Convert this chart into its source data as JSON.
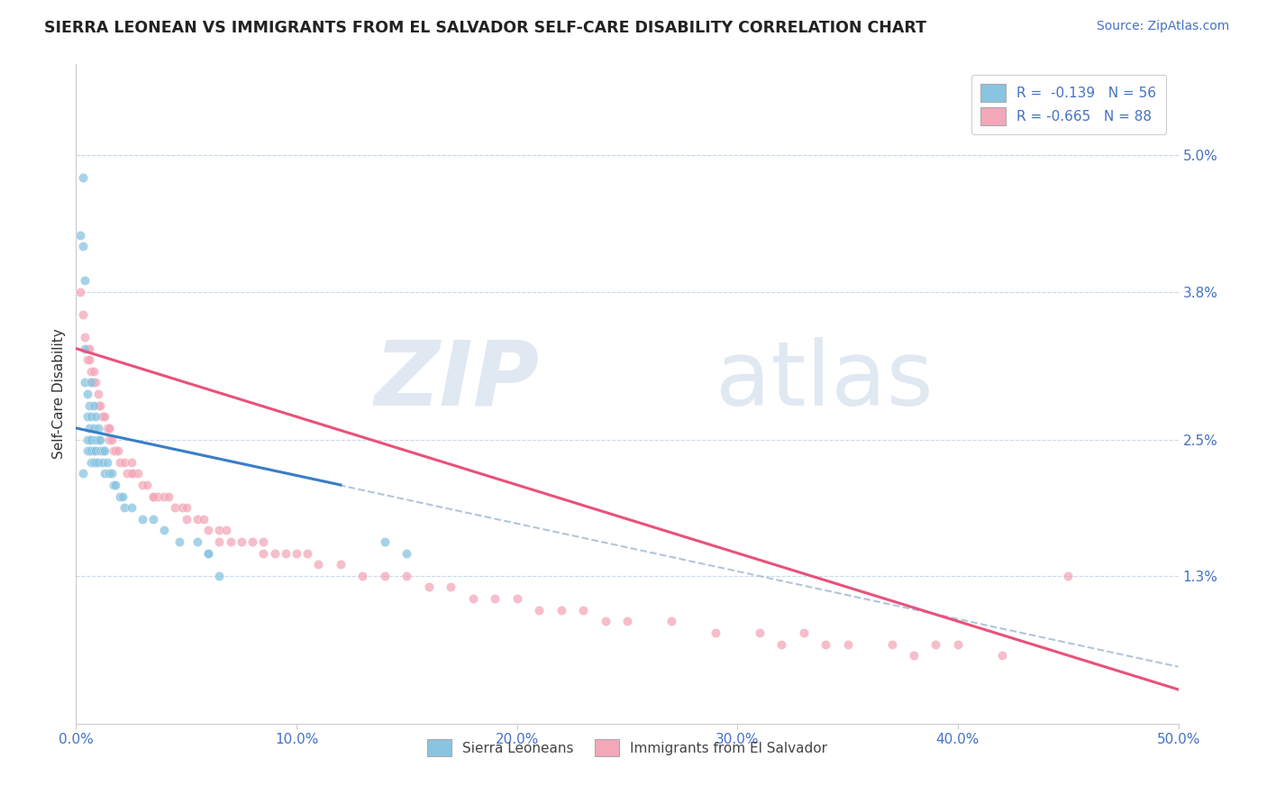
{
  "title": "SIERRA LEONEAN VS IMMIGRANTS FROM EL SALVADOR SELF-CARE DISABILITY CORRELATION CHART",
  "source": "Source: ZipAtlas.com",
  "ylabel_left": "Self-Care Disability",
  "x_min": 0.0,
  "x_max": 0.5,
  "y_min": 0.0,
  "y_max": 0.058,
  "right_yticks": [
    0.013,
    0.025,
    0.038,
    0.05
  ],
  "right_yticklabels": [
    "1.3%",
    "2.5%",
    "3.8%",
    "5.0%"
  ],
  "bottom_xticks": [
    0.0,
    0.1,
    0.2,
    0.3,
    0.4,
    0.5
  ],
  "bottom_xticklabels": [
    "0.0%",
    "10.0%",
    "20.0%",
    "30.0%",
    "40.0%",
    "50.0%"
  ],
  "legend_r1": "R =  -0.139",
  "legend_n1": "N = 56",
  "legend_r2": "R = -0.665",
  "legend_n2": "N = 88",
  "legend_label1": "Sierra Leoneans",
  "legend_label2": "Immigrants from El Salvador",
  "color_blue": "#89C4E1",
  "color_pink": "#F4A7B9",
  "color_blue_line": "#3A7EC6",
  "color_pink_line": "#E8527A",
  "color_axis": "#4472C4",
  "blue_x": [
    0.002,
    0.003,
    0.003,
    0.004,
    0.004,
    0.004,
    0.005,
    0.005,
    0.005,
    0.005,
    0.006,
    0.006,
    0.006,
    0.006,
    0.007,
    0.007,
    0.007,
    0.007,
    0.007,
    0.008,
    0.008,
    0.008,
    0.008,
    0.009,
    0.009,
    0.009,
    0.009,
    0.01,
    0.01,
    0.01,
    0.011,
    0.011,
    0.012,
    0.012,
    0.013,
    0.013,
    0.014,
    0.015,
    0.016,
    0.017,
    0.018,
    0.02,
    0.021,
    0.022,
    0.025,
    0.03,
    0.035,
    0.04,
    0.055,
    0.06,
    0.003,
    0.047,
    0.06,
    0.065,
    0.14,
    0.15
  ],
  "blue_y": [
    0.043,
    0.048,
    0.042,
    0.039,
    0.033,
    0.03,
    0.029,
    0.027,
    0.025,
    0.024,
    0.028,
    0.026,
    0.025,
    0.024,
    0.03,
    0.027,
    0.025,
    0.024,
    0.023,
    0.028,
    0.026,
    0.024,
    0.023,
    0.027,
    0.025,
    0.024,
    0.023,
    0.026,
    0.025,
    0.023,
    0.025,
    0.024,
    0.024,
    0.023,
    0.024,
    0.022,
    0.023,
    0.022,
    0.022,
    0.021,
    0.021,
    0.02,
    0.02,
    0.019,
    0.019,
    0.018,
    0.018,
    0.017,
    0.016,
    0.015,
    0.022,
    0.016,
    0.015,
    0.013,
    0.016,
    0.015
  ],
  "pink_x": [
    0.002,
    0.003,
    0.004,
    0.005,
    0.005,
    0.006,
    0.006,
    0.007,
    0.007,
    0.008,
    0.008,
    0.009,
    0.01,
    0.01,
    0.011,
    0.012,
    0.012,
    0.013,
    0.014,
    0.015,
    0.015,
    0.016,
    0.017,
    0.018,
    0.019,
    0.02,
    0.022,
    0.023,
    0.025,
    0.026,
    0.028,
    0.03,
    0.032,
    0.035,
    0.037,
    0.04,
    0.042,
    0.045,
    0.048,
    0.05,
    0.055,
    0.058,
    0.06,
    0.065,
    0.068,
    0.07,
    0.075,
    0.08,
    0.085,
    0.09,
    0.095,
    0.1,
    0.105,
    0.11,
    0.12,
    0.13,
    0.14,
    0.15,
    0.16,
    0.17,
    0.18,
    0.19,
    0.2,
    0.21,
    0.22,
    0.23,
    0.24,
    0.25,
    0.27,
    0.29,
    0.31,
    0.33,
    0.35,
    0.37,
    0.39,
    0.4,
    0.32,
    0.34,
    0.38,
    0.42,
    0.008,
    0.015,
    0.025,
    0.035,
    0.05,
    0.065,
    0.085,
    0.45
  ],
  "pink_y": [
    0.038,
    0.036,
    0.034,
    0.033,
    0.032,
    0.033,
    0.032,
    0.031,
    0.03,
    0.031,
    0.03,
    0.03,
    0.029,
    0.028,
    0.028,
    0.027,
    0.027,
    0.027,
    0.026,
    0.026,
    0.025,
    0.025,
    0.024,
    0.024,
    0.024,
    0.023,
    0.023,
    0.022,
    0.023,
    0.022,
    0.022,
    0.021,
    0.021,
    0.02,
    0.02,
    0.02,
    0.02,
    0.019,
    0.019,
    0.019,
    0.018,
    0.018,
    0.017,
    0.017,
    0.017,
    0.016,
    0.016,
    0.016,
    0.016,
    0.015,
    0.015,
    0.015,
    0.015,
    0.014,
    0.014,
    0.013,
    0.013,
    0.013,
    0.012,
    0.012,
    0.011,
    0.011,
    0.011,
    0.01,
    0.01,
    0.01,
    0.009,
    0.009,
    0.009,
    0.008,
    0.008,
    0.008,
    0.007,
    0.007,
    0.007,
    0.007,
    0.007,
    0.007,
    0.006,
    0.006,
    0.03,
    0.026,
    0.022,
    0.02,
    0.018,
    0.016,
    0.015,
    0.013
  ],
  "blue_trend_x": [
    0.0,
    0.12
  ],
  "blue_trend_y": [
    0.026,
    0.021
  ],
  "pink_trend_x": [
    0.0,
    0.5
  ],
  "pink_trend_y": [
    0.033,
    0.003
  ],
  "dash_trend_x": [
    0.0,
    0.5
  ],
  "dash_trend_y": [
    0.026,
    0.005
  ]
}
